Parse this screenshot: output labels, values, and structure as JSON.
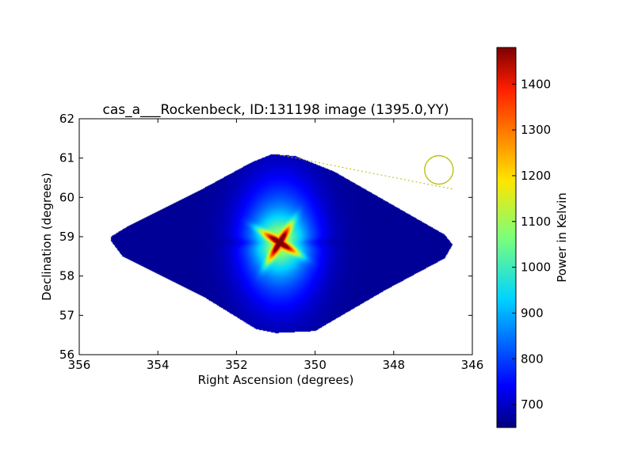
{
  "chart_data": {
    "type": "heatmap",
    "title": "cas_a___Rockenbeck, ID:131198 image (1395.0,YY)",
    "xlabel": "Right Ascension (degrees)",
    "ylabel": "Declination (degrees)",
    "xlim": [
      356,
      346
    ],
    "ylim": [
      56,
      62
    ],
    "x_ticks": [
      356,
      354,
      352,
      350,
      348,
      346
    ],
    "y_ticks": [
      56,
      57,
      58,
      59,
      60,
      61,
      62
    ],
    "x_tick_labels": [
      "356",
      "354",
      "352",
      "350",
      "348",
      "346"
    ],
    "y_tick_labels": [
      "56",
      "57",
      "58",
      "59",
      "60",
      "61",
      "62"
    ],
    "colormap": "jet",
    "colorbar": {
      "label": "Power in Kelvin",
      "range": [
        650,
        1480
      ],
      "ticks": [
        700,
        800,
        900,
        1000,
        1100,
        1200,
        1300,
        1400
      ],
      "tick_labels": [
        "700",
        "800",
        "900",
        "1000",
        "1100",
        "1200",
        "1300",
        "1400"
      ]
    },
    "coverage_polygon": [
      [
        355.2,
        59.0
      ],
      [
        355.2,
        58.9
      ],
      [
        354.9,
        58.5
      ],
      [
        352.8,
        57.45
      ],
      [
        351.5,
        56.65
      ],
      [
        351.0,
        56.55
      ],
      [
        350.0,
        56.6
      ],
      [
        348.2,
        57.65
      ],
      [
        346.7,
        58.45
      ],
      [
        346.5,
        58.8
      ],
      [
        346.7,
        59.05
      ],
      [
        349.5,
        60.65
      ],
      [
        350.5,
        61.05
      ],
      [
        351.1,
        61.1
      ],
      [
        351.6,
        60.9
      ],
      [
        352.8,
        60.25
      ],
      [
        354.7,
        59.3
      ]
    ],
    "peak": {
      "ra": 350.9,
      "dec": 58.85,
      "value": 1470
    },
    "baseline_value": 660,
    "beam_marker": {
      "ra": 346.85,
      "dec": 60.7,
      "color": "#bbbb00"
    },
    "beam_guide_line": {
      "from": [
        351.0,
        61.1
      ],
      "to": [
        346.45,
        60.2
      ],
      "color": "#bbbb00"
    },
    "grid": false
  }
}
